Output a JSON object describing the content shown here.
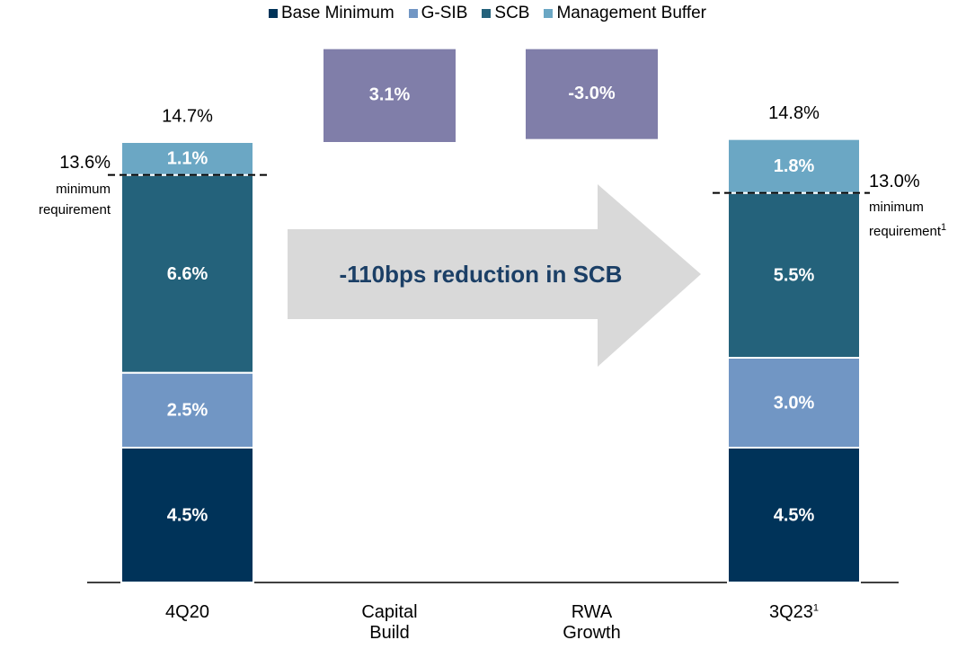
{
  "chart_data": {
    "type": "waterfall",
    "categories": [
      "4Q20",
      "Capital Build",
      "RWA Growth",
      "3Q23"
    ],
    "category_notes": [
      null,
      null,
      null,
      "1"
    ],
    "series": [
      {
        "name": "Base Minimum",
        "color": "#003359",
        "values": [
          4.5,
          null,
          null,
          4.5
        ],
        "value_labels": [
          "4.5%",
          null,
          null,
          "4.5%"
        ]
      },
      {
        "name": "G-SIB",
        "color": "#7196c4",
        "values": [
          2.5,
          null,
          null,
          3.0
        ],
        "value_labels": [
          "2.5%",
          null,
          null,
          "3.0%"
        ]
      },
      {
        "name": "SCB",
        "color": "#24627b",
        "values": [
          6.6,
          null,
          null,
          5.5
        ],
        "value_labels": [
          "6.6%",
          null,
          null,
          "5.5%"
        ]
      },
      {
        "name": "Management Buffer",
        "color": "#6ba7c4",
        "values": [
          1.1,
          null,
          null,
          1.8
        ],
        "value_labels": [
          "1.1%",
          null,
          null,
          "1.8%"
        ]
      }
    ],
    "changes": {
      "color": "#807ea9",
      "values": [
        null,
        3.1,
        -3.0,
        null
      ],
      "value_labels": [
        null,
        "3.1%",
        "-3.0%",
        null
      ]
    },
    "totals": {
      "values": [
        14.7,
        null,
        null,
        14.8
      ],
      "value_labels": [
        "14.7%",
        null,
        null,
        "14.8%"
      ]
    },
    "minimum_requirements": [
      {
        "value": 13.6,
        "label": "13.6%",
        "note": "minimum requirement"
      },
      null,
      null,
      {
        "value": 13.0,
        "label": "13.0%",
        "note": "minimum requirement",
        "note_footnote": "1"
      }
    ],
    "annotation": "-110bps reduction in SCB",
    "ylim": [
      0,
      18
    ]
  }
}
